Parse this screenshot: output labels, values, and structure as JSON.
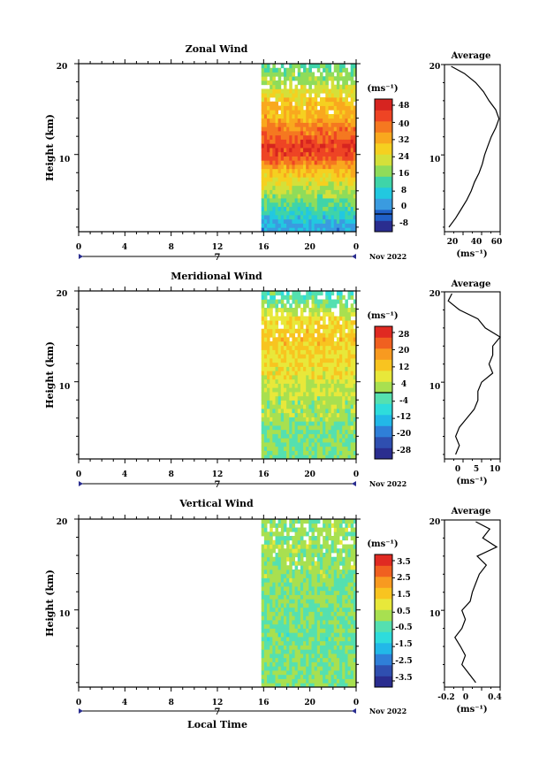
{
  "panels": [
    {
      "title": "Zonal Wind",
      "ylabel": "Height (km)",
      "yticks": [
        "20",
        "10"
      ],
      "xticks": [
        "0",
        "4",
        "8",
        "12",
        "16",
        "20",
        "0"
      ],
      "day_label": "7",
      "date_label": "Nov 2022",
      "cbar_unit": "(ms⁻¹)",
      "cbar_ticks": [
        "48",
        "40",
        "32",
        "24",
        "16",
        "8",
        "0",
        "-8"
      ],
      "avg_title": "Average",
      "avg_yticks": [
        "20",
        "10"
      ],
      "avg_xticks": [
        "20",
        "40",
        "60"
      ],
      "avg_unit": "(ms⁻¹)"
    },
    {
      "title": "Meridional Wind",
      "ylabel": "Height (km)",
      "yticks": [
        "20",
        "10"
      ],
      "xticks": [
        "0",
        "4",
        "8",
        "12",
        "16",
        "20",
        "0"
      ],
      "day_label": "7",
      "date_label": "Nov 2022",
      "cbar_unit": "(ms⁻¹)",
      "cbar_ticks": [
        "28",
        "20",
        "12",
        "4",
        "-4",
        "-12",
        "-20",
        "-28"
      ],
      "avg_title": "Average",
      "avg_yticks": [
        "20",
        "10"
      ],
      "avg_xticks": [
        "0",
        "5",
        "10"
      ],
      "avg_unit": "(ms⁻¹)"
    },
    {
      "title": "Vertical Wind",
      "ylabel": "Height (km)",
      "yticks": [
        "20",
        "10"
      ],
      "xticks": [
        "0",
        "4",
        "8",
        "12",
        "16",
        "20",
        "0"
      ],
      "day_label": "7",
      "date_label": "Nov 2022",
      "cbar_unit": "(ms⁻¹)",
      "cbar_ticks": [
        "3.5",
        "2.5",
        "1.5",
        "0.5",
        "-0.5",
        "-1.5",
        "-2.5",
        "-3.5"
      ],
      "avg_title": "Average",
      "avg_yticks": [
        "20",
        "10"
      ],
      "avg_xticks": [
        "-0.2",
        "0",
        "0.4"
      ],
      "avg_unit": "(ms⁻¹)"
    }
  ],
  "xlabel": "Local Time",
  "colors": {
    "cbar_zonal": [
      "#2a2d8f",
      "#2060c8",
      "#3a9be0",
      "#22c8e0",
      "#3fd4a8",
      "#8fdc5a",
      "#d4e03a",
      "#f5d020",
      "#f9a81e",
      "#f57820",
      "#ee4424",
      "#d62420"
    ],
    "cbar_merid": [
      "#2a2d8f",
      "#2f4fb0",
      "#2f7fd8",
      "#22b8e8",
      "#2edcdc",
      "#55e0b0",
      "#a8e050",
      "#e8e83a",
      "#f8c420",
      "#f89a20",
      "#f06020",
      "#e02a22"
    ],
    "cbar_vert": [
      "#2a2d8f",
      "#2f4fb0",
      "#2f7fd8",
      "#22b8e8",
      "#2edcdc",
      "#55e0b0",
      "#a8e050",
      "#e8e83a",
      "#f8c420",
      "#f89a20",
      "#f06020",
      "#e02a22"
    ]
  },
  "chart_data": [
    {
      "type": "heatmap",
      "title": "Zonal Wind",
      "ylabel": "Height (km)",
      "xlabel": "Local Time",
      "x_range": [
        0,
        24
      ],
      "y_range": [
        1.5,
        20
      ],
      "data_x_range": [
        15.8,
        24
      ],
      "colorbar_range": [
        -8,
        52
      ],
      "colorbar_unit": "ms-1",
      "height_profile_km": [
        2,
        3,
        4,
        5,
        6,
        7,
        8,
        9,
        10,
        11,
        12,
        13,
        14,
        15,
        16,
        17,
        18,
        19,
        19.8
      ],
      "value_profile": [
        6,
        10,
        14,
        18,
        22,
        26,
        30,
        38,
        44,
        46,
        42,
        38,
        34,
        32,
        30,
        26,
        22,
        18,
        16
      ]
    },
    {
      "type": "line",
      "title": "Average",
      "xlabel": "(ms-1)",
      "x_range": [
        10,
        60
      ],
      "y_range": [
        1.5,
        20
      ],
      "y": [
        2,
        3,
        4,
        5,
        6,
        7,
        8,
        9,
        10,
        11,
        12,
        13,
        14,
        15,
        16,
        17,
        18,
        19,
        19.8
      ],
      "x": [
        14,
        20,
        25,
        30,
        34,
        37,
        41,
        44,
        46,
        49,
        52,
        56,
        59,
        56,
        50,
        45,
        38,
        28,
        16
      ]
    },
    {
      "type": "heatmap",
      "title": "Meridional Wind",
      "ylabel": "Height (km)",
      "xlabel": "Local Time",
      "x_range": [
        0,
        24
      ],
      "y_range": [
        1.5,
        20
      ],
      "data_x_range": [
        15.8,
        24
      ],
      "colorbar_range": [
        -32,
        32
      ],
      "colorbar_unit": "ms-1",
      "height_profile_km": [
        2,
        3,
        4,
        5,
        6,
        7,
        8,
        9,
        10,
        11,
        12,
        13,
        14,
        15,
        16,
        17,
        18,
        19,
        19.8
      ],
      "value_profile": [
        0,
        -1,
        0,
        1,
        2,
        3,
        4,
        5,
        6,
        9,
        10,
        10,
        12,
        13,
        11,
        9,
        4,
        -2,
        -4
      ]
    },
    {
      "type": "line",
      "title": "Average",
      "xlabel": "(ms-1)",
      "x_range": [
        -3,
        12
      ],
      "y_range": [
        1.5,
        20
      ],
      "y": [
        2,
        3,
        4,
        5,
        6,
        7,
        8,
        9,
        10,
        11,
        12,
        13,
        14,
        15,
        16,
        17,
        18,
        19,
        19.8
      ],
      "x": [
        0,
        1,
        0,
        1,
        3,
        5,
        6,
        6,
        7,
        10,
        9,
        10,
        10,
        12,
        8,
        6,
        1,
        -2,
        -1
      ]
    },
    {
      "type": "heatmap",
      "title": "Vertical Wind",
      "ylabel": "Height (km)",
      "xlabel": "Local Time",
      "x_range": [
        0,
        24
      ],
      "y_range": [
        1.5,
        20
      ],
      "data_x_range": [
        15.8,
        24
      ],
      "colorbar_range": [
        -4,
        4
      ],
      "colorbar_unit": "ms-1",
      "height_profile_km": [
        2,
        3,
        4,
        5,
        6,
        7,
        8,
        9,
        10,
        11,
        12,
        13,
        14,
        15,
        16,
        17,
        18,
        19,
        19.8
      ],
      "value_profile": [
        0.1,
        0,
        -0.1,
        0,
        -0.1,
        -0.2,
        -0.1,
        0,
        -0.1,
        0,
        0.05,
        0.1,
        0.15,
        0.2,
        0.15,
        0.3,
        0.2,
        0.25,
        0.1
      ]
    },
    {
      "type": "line",
      "title": "Average",
      "xlabel": "(ms-1)",
      "x_range": [
        -0.35,
        0.45
      ],
      "y_range": [
        1.5,
        20
      ],
      "y": [
        2,
        3,
        4,
        5,
        6,
        7,
        8,
        9,
        10,
        11,
        12,
        13,
        14,
        15,
        16,
        17,
        18,
        19,
        19.8
      ],
      "x": [
        0.1,
        0,
        -0.1,
        -0.05,
        -0.12,
        -0.2,
        -0.1,
        -0.05,
        -0.1,
        0.02,
        0.05,
        0.1,
        0.15,
        0.25,
        0.12,
        0.4,
        0.2,
        0.3,
        0.1
      ]
    }
  ]
}
